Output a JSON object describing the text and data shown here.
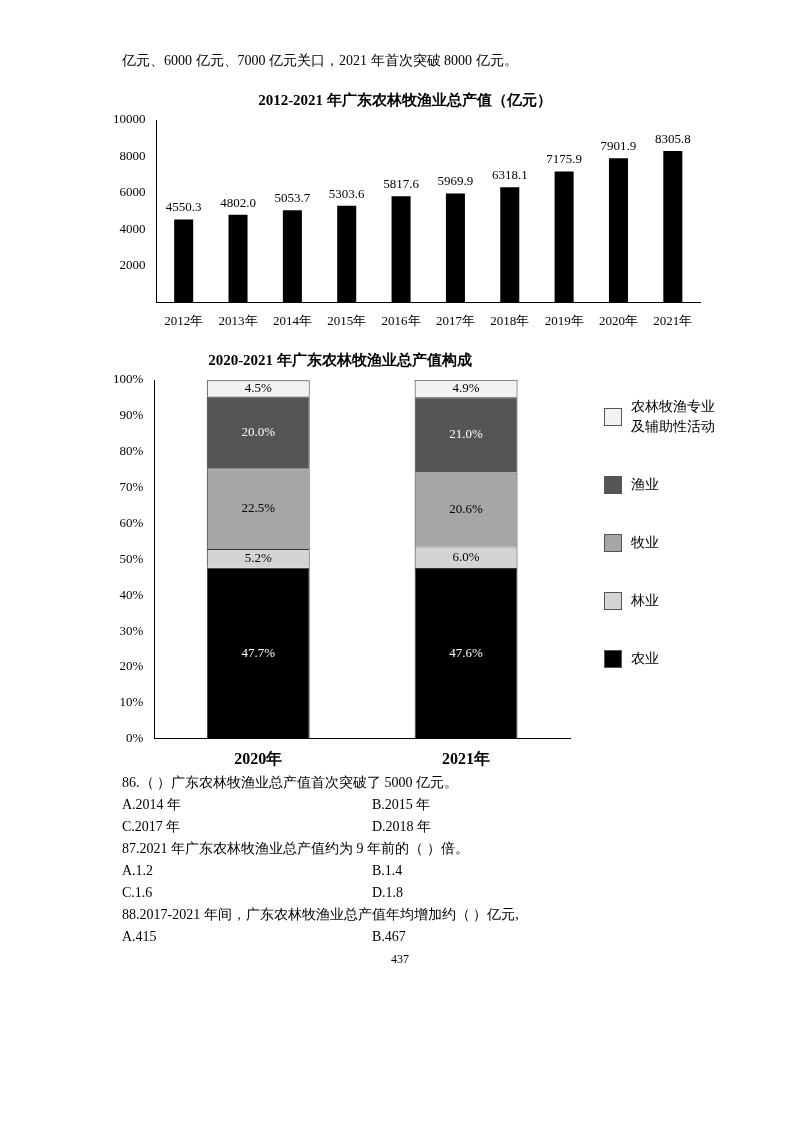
{
  "chart_data": [
    {
      "type": "bar",
      "title": "2012-2021 年广东农林牧渔业总产值（亿元）",
      "categories": [
        "2012年",
        "2013年",
        "2014年",
        "2015年",
        "2016年",
        "2017年",
        "2018年",
        "2019年",
        "2020年",
        "2021年"
      ],
      "values": [
        4550.3,
        4802.0,
        5053.7,
        5303.6,
        5817.6,
        5969.9,
        6318.1,
        7175.9,
        7901.9,
        8305.8
      ],
      "value_labels": [
        "4550.3",
        "4802.0",
        "5053.7",
        "5303.6",
        "5817.6",
        "5969.9",
        "6318.1",
        "7175.9",
        "7901.9",
        "8305.8"
      ],
      "color": "#000000",
      "ylim": [
        0,
        10000
      ],
      "yticks": [
        {
          "value": 0,
          "label": null
        },
        2000,
        4000,
        6000,
        8000,
        10000
      ],
      "annotations": [
        "亿元、6000 亿元、7000 亿元关口，2021 年首次突破 8000 亿元。"
      ]
    },
    {
      "type": "bar",
      "title": "2020-2021 年广东农林牧渔业总产值构成",
      "categories": [
        "2020年",
        "2021年"
      ],
      "stacked": true,
      "legend": "right",
      "series": [
        {
          "name": "农业",
          "color": "#000000",
          "values": [
            47.7,
            47.6
          ],
          "value_labels": [
            "47.7%",
            "47.6%"
          ]
        },
        {
          "name": "林业",
          "color": "#d4d4d4",
          "values": [
            5.2,
            6.0
          ],
          "value_labels": [
            "5.2%",
            "6.0%"
          ]
        },
        {
          "name": "牧业",
          "color": "#a6a6a6",
          "values": [
            22.5,
            20.6
          ],
          "value_labels": [
            "22.5%",
            "20.6%"
          ]
        },
        {
          "name": "渔业",
          "color": "#555555",
          "values": [
            20.0,
            21.0
          ],
          "value_labels": [
            "20.0%",
            "21.0%"
          ]
        },
        {
          "name": "农林牧渔专业及辅助性活动",
          "color": "#f2f2f2",
          "values": [
            4.5,
            4.9
          ],
          "value_labels": [
            "4.5%",
            "4.9%"
          ]
        }
      ],
      "ylim": [
        0,
        100
      ],
      "yticks": [
        {
          "value": 0,
          "label": "0%"
        },
        {
          "value": 10,
          "label": "10%"
        },
        {
          "value": 20,
          "label": "20%"
        },
        {
          "value": 30,
          "label": "30%"
        },
        {
          "value": 40,
          "label": "40%"
        },
        {
          "value": 50,
          "label": "50%"
        },
        {
          "value": 60,
          "label": "60%"
        },
        {
          "value": 70,
          "label": "70%"
        },
        {
          "value": 80,
          "label": "80%"
        },
        {
          "value": 90,
          "label": "90%"
        },
        {
          "value": 100,
          "label": "100%"
        }
      ],
      "annotations": [
        "86.（ ）广东农林牧渔业总产值首次突破了 5000 亿元。",
        "A.2014 年",
        "B.2015 年",
        "C.2017 年",
        "D.2018 年",
        "87.2021 年广东农林牧渔业总产值约为 9 年前的（ ）倍。",
        "A.1.2",
        "B.1.4",
        "C.1.6",
        "D.1.8",
        "88.2017-2021 年间，广东农林牧渔业总产值年均增加约（ ）亿元,",
        "A.415",
        "B.467",
        "437"
      ]
    }
  ]
}
